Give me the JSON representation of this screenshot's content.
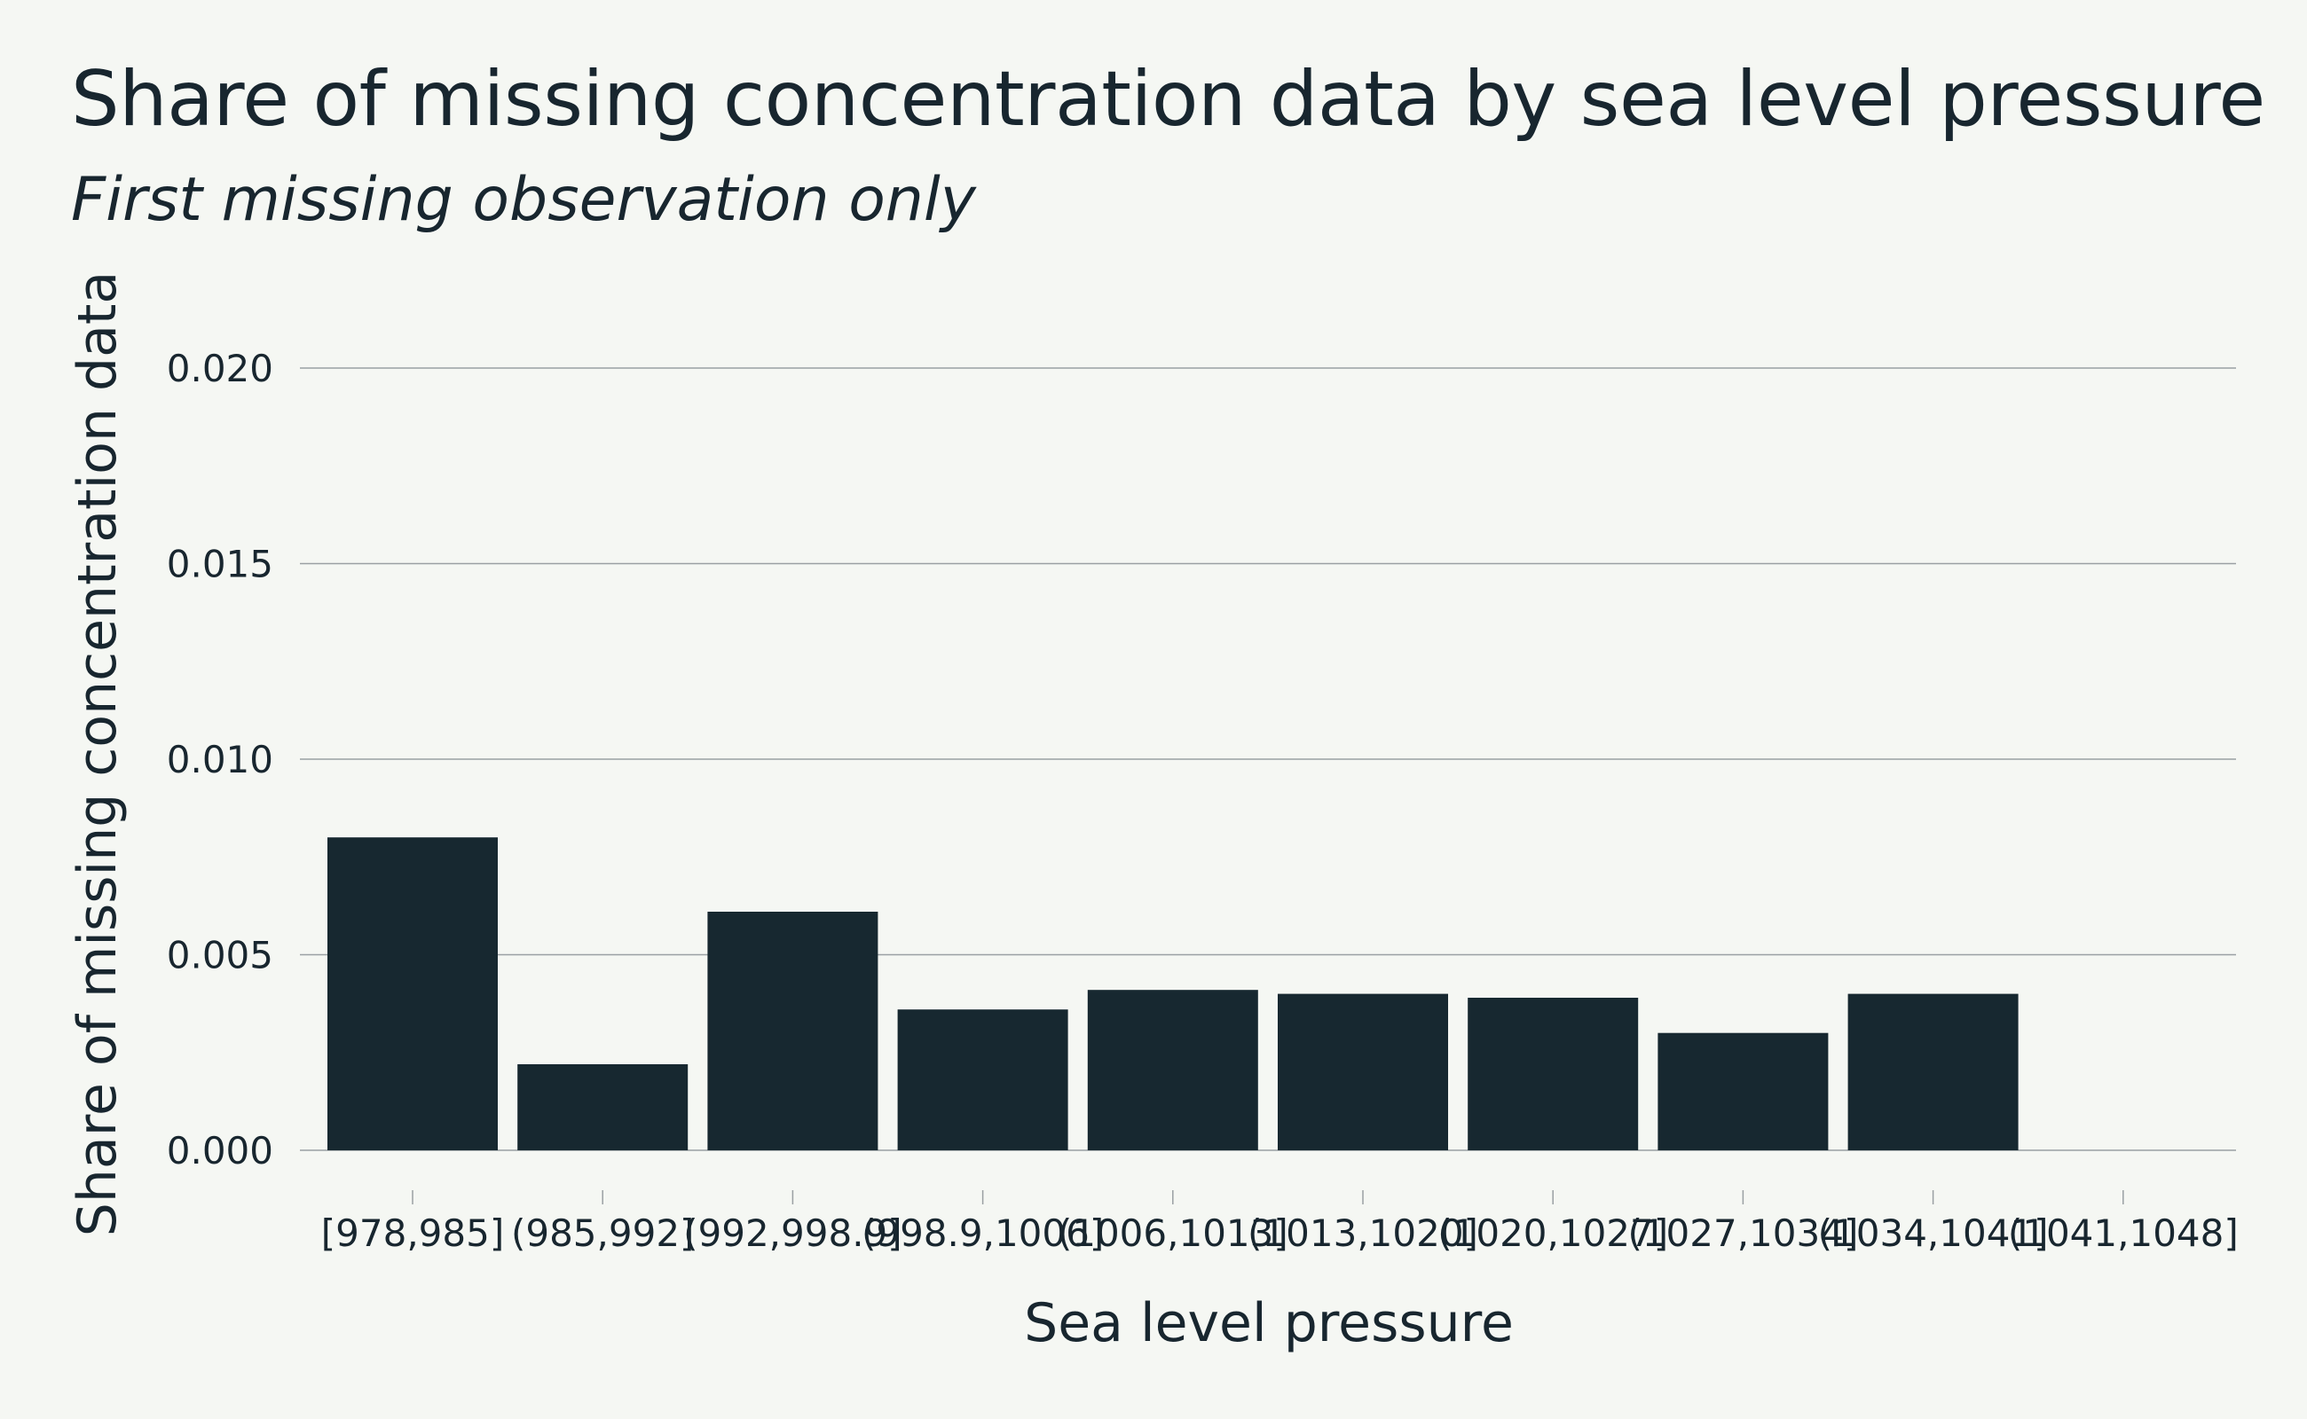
{
  "chart_data": {
    "type": "bar",
    "title": "Share of missing concentration data by sea level pressure",
    "subtitle": "First missing observation only",
    "xlabel": "Sea level pressure",
    "ylabel": "Share of missing concentration data",
    "categories": [
      "[978,985]",
      "(985,992]",
      "(992,998.9]",
      "(998.9,1006]",
      "(1006,1013]",
      "(1013,1020]",
      "(1020,1027]",
      "(1027,1034]",
      "(1034,1041]",
      "(1041,1048]"
    ],
    "values": [
      0.008,
      0.0022,
      0.0061,
      0.0036,
      0.0041,
      0.004,
      0.0039,
      0.003,
      0.004,
      0.0
    ],
    "ylim": [
      0,
      0.02
    ],
    "yticks": [
      0,
      0.005,
      0.01,
      0.015,
      0.02
    ],
    "ytick_labels": [
      "0.000",
      "0.005",
      "0.010",
      "0.015",
      "0.020"
    ],
    "grid": "horizontal",
    "legend": "none",
    "colors": {
      "bar": "#172830",
      "grid": "#9aa0a3",
      "background": "#f5f7f3",
      "text": "#18262f"
    }
  }
}
